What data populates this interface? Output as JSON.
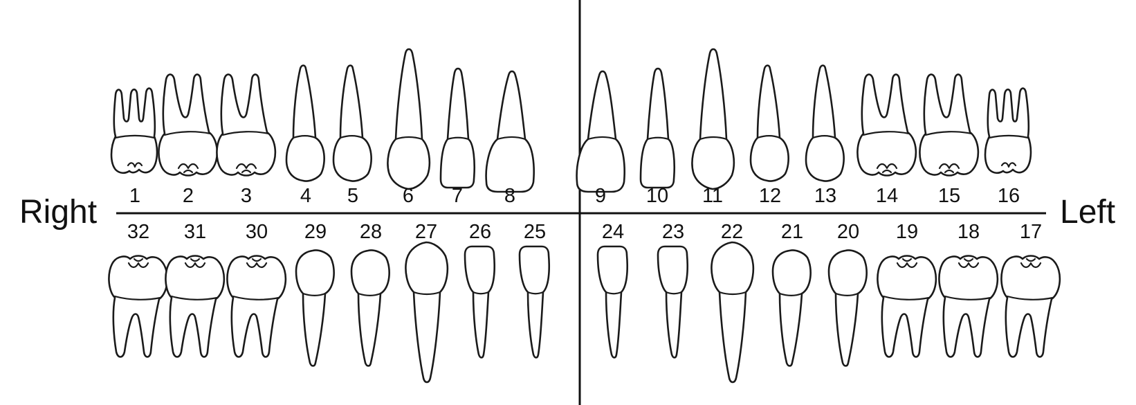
{
  "labels": {
    "right": "Right",
    "left": "Left"
  },
  "upper_teeth": [
    {
      "number": "1",
      "kind": "molar3"
    },
    {
      "number": "2",
      "kind": "molar"
    },
    {
      "number": "3",
      "kind": "molar"
    },
    {
      "number": "4",
      "kind": "premolar"
    },
    {
      "number": "5",
      "kind": "premolar"
    },
    {
      "number": "6",
      "kind": "canine"
    },
    {
      "number": "7",
      "kind": "lateral-incisor"
    },
    {
      "number": "8",
      "kind": "central-incisor"
    },
    {
      "number": "9",
      "kind": "central-incisor"
    },
    {
      "number": "10",
      "kind": "lateral-incisor"
    },
    {
      "number": "11",
      "kind": "canine"
    },
    {
      "number": "12",
      "kind": "premolar"
    },
    {
      "number": "13",
      "kind": "premolar"
    },
    {
      "number": "14",
      "kind": "molar"
    },
    {
      "number": "15",
      "kind": "molar"
    },
    {
      "number": "16",
      "kind": "molar3"
    }
  ],
  "lower_teeth": [
    {
      "number": "32",
      "kind": "molar"
    },
    {
      "number": "31",
      "kind": "molar"
    },
    {
      "number": "30",
      "kind": "molar"
    },
    {
      "number": "29",
      "kind": "premolar"
    },
    {
      "number": "28",
      "kind": "premolar"
    },
    {
      "number": "27",
      "kind": "canine"
    },
    {
      "number": "26",
      "kind": "incisor"
    },
    {
      "number": "25",
      "kind": "incisor"
    },
    {
      "number": "24",
      "kind": "incisor"
    },
    {
      "number": "23",
      "kind": "incisor"
    },
    {
      "number": "22",
      "kind": "canine"
    },
    {
      "number": "21",
      "kind": "premolar"
    },
    {
      "number": "20",
      "kind": "premolar"
    },
    {
      "number": "19",
      "kind": "molar"
    },
    {
      "number": "18",
      "kind": "molar"
    },
    {
      "number": "17",
      "kind": "molar"
    }
  ],
  "colors": {
    "line": "#111111",
    "background": "#ffffff"
  }
}
